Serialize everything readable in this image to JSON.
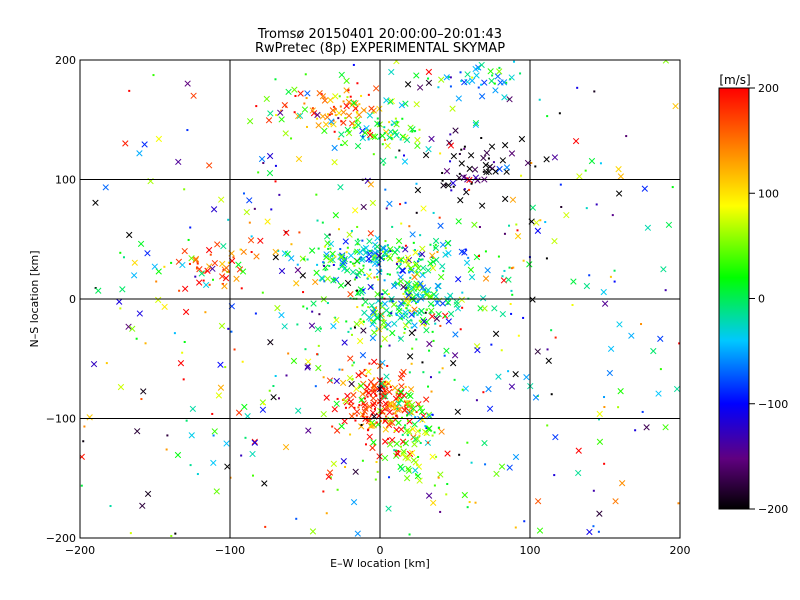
{
  "chart_data": {
    "type": "scatter",
    "title": "Tromsø 20150401 20:00:00–20:01:43",
    "subtitle": "RwPretec (8p) EXPERIMENTAL SKYMAP",
    "xlabel": "E–W location [km]",
    "ylabel": "N–S location [km]",
    "xlim": [
      -200,
      200
    ],
    "ylim": [
      -200,
      200
    ],
    "x_ticks": [
      -200,
      -100,
      0,
      100,
      200
    ],
    "y_ticks": [
      -200,
      -100,
      0,
      100,
      200
    ],
    "x_tick_labels": [
      "−200",
      "−100",
      "0",
      "100",
      "200"
    ],
    "y_tick_labels": [
      "−200",
      "−100",
      "0",
      "100",
      "200"
    ],
    "grid": true,
    "markers": [
      "x",
      "dot"
    ],
    "colorbar": {
      "label": "[m/s]",
      "range": [
        -200,
        200
      ],
      "ticks": [
        200,
        100,
        0,
        -100,
        -200
      ],
      "tick_labels": [
        "200",
        "100",
        "0",
        "−100",
        "−200"
      ],
      "colormap": [
        "#000000",
        "#600080",
        "#0000ff",
        "#00c8ff",
        "#00ff00",
        "#ffff00",
        "#ff8000",
        "#ff0000"
      ]
    },
    "clusters": [
      {
        "x": 0,
        "y": 35,
        "sx": 30,
        "sy": 8,
        "n": 160,
        "v": -20
      },
      {
        "x": 0,
        "y": -5,
        "sx": 25,
        "sy": 20,
        "n": 180,
        "v": 10
      },
      {
        "x": 0,
        "y": -88,
        "sx": 15,
        "sy": 15,
        "n": 180,
        "v": 185
      },
      {
        "x": 20,
        "y": -115,
        "sx": 12,
        "sy": 25,
        "n": 100,
        "v": 40
      },
      {
        "x": -30,
        "y": 160,
        "sx": 15,
        "sy": 10,
        "n": 70,
        "v": 140
      },
      {
        "x": 0,
        "y": 140,
        "sx": 15,
        "sy": 10,
        "n": 70,
        "v": 20
      },
      {
        "x": 60,
        "y": 110,
        "sx": 15,
        "sy": 12,
        "n": 55,
        "v": -200
      },
      {
        "x": 65,
        "y": 185,
        "sx": 15,
        "sy": 10,
        "n": 50,
        "v": -40
      },
      {
        "x": -110,
        "y": 25,
        "sx": 12,
        "sy": 12,
        "n": 45,
        "v": 180
      },
      {
        "x": 25,
        "y": 0,
        "sx": 15,
        "sy": 10,
        "n": 70,
        "v": -20
      },
      {
        "x": 0,
        "y": 0,
        "sx": 130,
        "sy": 130,
        "n": 750,
        "v": 0
      }
    ]
  }
}
